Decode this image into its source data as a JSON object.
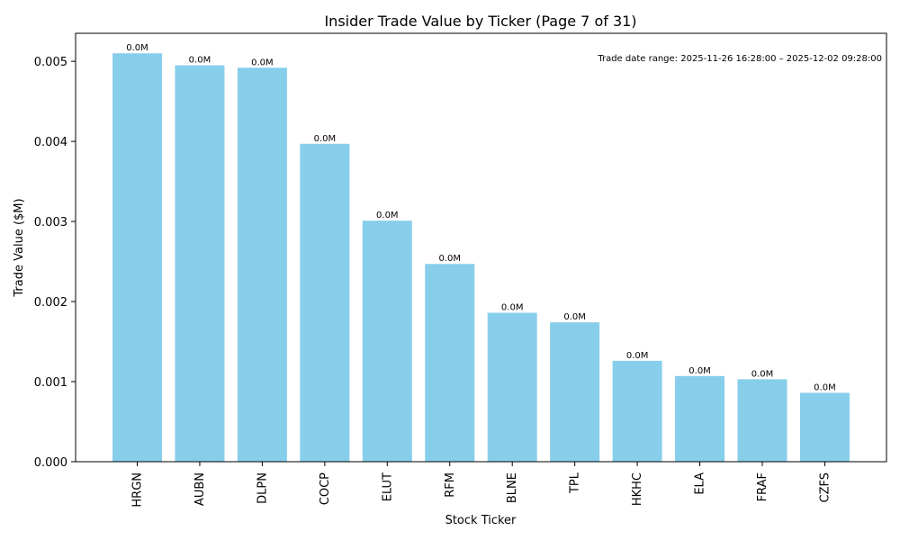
{
  "chart_data": {
    "type": "bar",
    "title": "Insider Trade Value by Ticker (Page 7 of 31)",
    "xlabel": "Stock Ticker",
    "ylabel": "Trade Value ($M)",
    "ylim": [
      0,
      0.00535
    ],
    "yticks": [
      "0.000",
      "0.001",
      "0.002",
      "0.003",
      "0.004",
      "0.005"
    ],
    "ytick_values": [
      0,
      0.001,
      0.002,
      0.003,
      0.004,
      0.005
    ],
    "categories": [
      "HRGN",
      "AUBN",
      "DLPN",
      "COCP",
      "ELUT",
      "RFM",
      "BLNE",
      "TPL",
      "HKHC",
      "ELA",
      "FRAF",
      "CZFS"
    ],
    "values": [
      0.0051,
      0.00495,
      0.00492,
      0.00397,
      0.00301,
      0.00247,
      0.00186,
      0.00174,
      0.00126,
      0.00107,
      0.00103,
      0.00086
    ],
    "data_labels": [
      "0.0M",
      "0.0M",
      "0.0M",
      "0.0M",
      "0.0M",
      "0.0M",
      "0.0M",
      "0.0M",
      "0.0M",
      "0.0M",
      "0.0M",
      "0.0M"
    ],
    "bar_color": "#87ceeb",
    "annotation": "Trade date range: 2025-11-26 16:28:00 – 2025-12-02 09:28:00"
  }
}
